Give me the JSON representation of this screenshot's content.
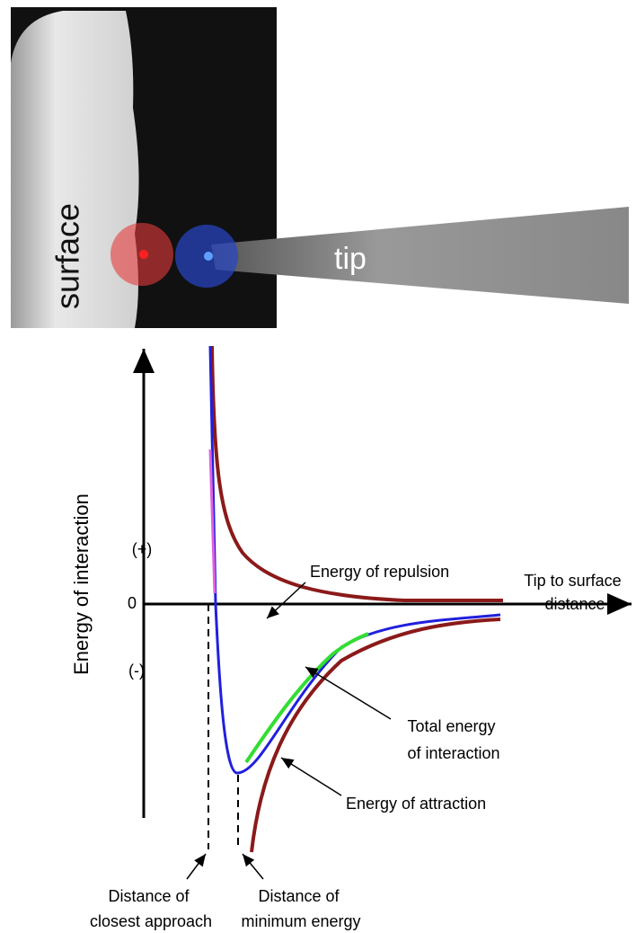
{
  "photo": {
    "surface_label": "surface",
    "tip_label": "tip"
  },
  "graph": {
    "y_axis_label": "Energy of interaction",
    "positive_label": "(+)",
    "zero_label": "0",
    "negative_label": "(-)",
    "x_axis_label": [
      "Tip to surface",
      "distance"
    ],
    "repulsion_label": "Energy of repulsion",
    "total_label": [
      "Total energy",
      "of interaction"
    ],
    "attraction_label": "Energy of attraction",
    "closest_approach_label": [
      "Distance of",
      "closest approach"
    ],
    "minimum_energy_label": [
      "Distance of",
      "minimum energy"
    ]
  }
}
